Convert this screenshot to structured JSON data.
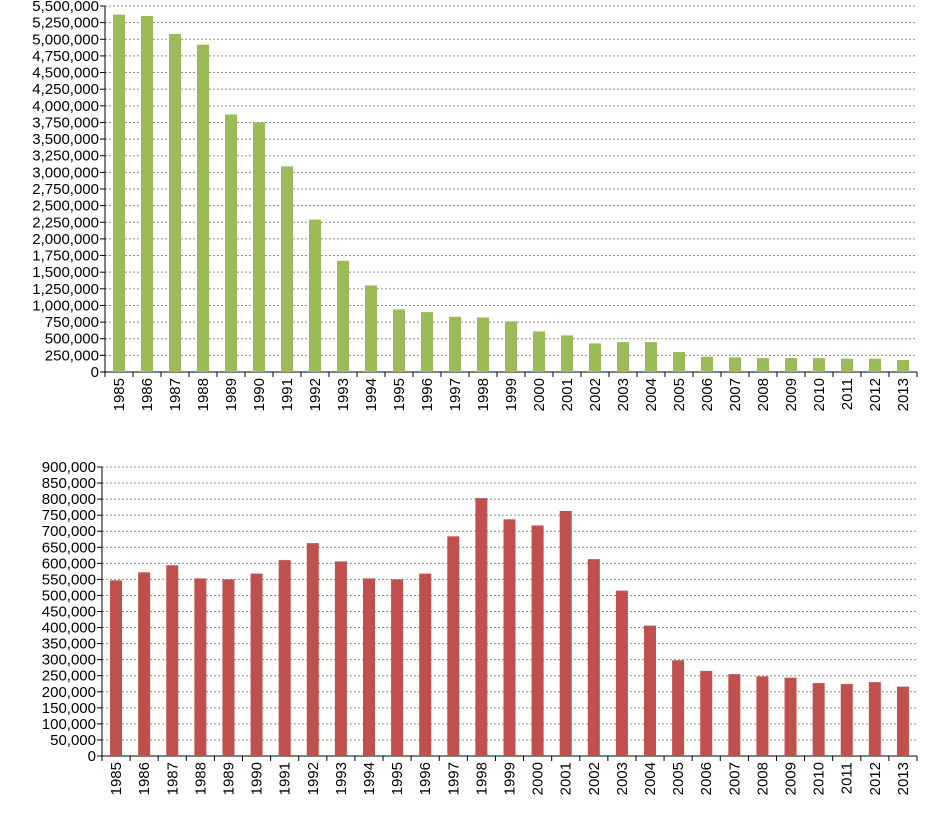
{
  "chart_data": [
    {
      "type": "bar",
      "title": "",
      "xlabel": "",
      "ylabel": "",
      "color": "#9bbb59",
      "ylim": [
        0,
        5500000
      ],
      "ytick_step": 250000,
      "grid": true,
      "categories": [
        "1985",
        "1986",
        "1987",
        "1988",
        "1989",
        "1990",
        "1991",
        "1992",
        "1993",
        "1994",
        "1995",
        "1996",
        "1997",
        "1998",
        "1999",
        "2000",
        "2001",
        "2002",
        "2003",
        "2004",
        "2005",
        "2006",
        "2007",
        "2008",
        "2009",
        "2010",
        "2011",
        "2012",
        "2013"
      ],
      "values": [
        5370000,
        5350000,
        5080000,
        4920000,
        3870000,
        3750000,
        3090000,
        2290000,
        1670000,
        1300000,
        940000,
        900000,
        830000,
        820000,
        760000,
        610000,
        550000,
        430000,
        450000,
        450000,
        300000,
        230000,
        220000,
        210000,
        210000,
        210000,
        200000,
        200000,
        180000
      ],
      "ytick_labels": [
        "0",
        "250,000",
        "500,000",
        "750,000",
        "1,000,000",
        "1,250,000",
        "1,500,000",
        "1,750,000",
        "2,000,000",
        "2,250,000",
        "2,500,000",
        "2,750,000",
        "3,000,000",
        "3,250,000",
        "3,500,000",
        "3,750,000",
        "4,000,000",
        "4,250,000",
        "4,500,000",
        "4,750,000",
        "5,000,000",
        "5,250,000",
        "5,500,000"
      ]
    },
    {
      "type": "bar",
      "title": "",
      "xlabel": "",
      "ylabel": "",
      "color": "#c0504d",
      "ylim": [
        0,
        900000
      ],
      "ytick_step": 50000,
      "grid": true,
      "categories": [
        "1985",
        "1986",
        "1987",
        "1988",
        "1989",
        "1990",
        "1991",
        "1992",
        "1993",
        "1994",
        "1995",
        "1996",
        "1997",
        "1998",
        "1999",
        "2000",
        "2001",
        "2002",
        "2003",
        "2004",
        "2005",
        "2006",
        "2007",
        "2008",
        "2009",
        "2010",
        "2011",
        "2012",
        "2013"
      ],
      "values": [
        547000,
        572000,
        594000,
        553000,
        550000,
        568000,
        610000,
        663000,
        606000,
        553000,
        550000,
        568000,
        684000,
        803000,
        737000,
        718000,
        763000,
        613000,
        515000,
        406000,
        298000,
        265000,
        255000,
        248000,
        244000,
        227000,
        224000,
        230000,
        216000
      ],
      "ytick_labels": [
        "0",
        "50,000",
        "100,000",
        "150,000",
        "200,000",
        "250,000",
        "300,000",
        "350,000",
        "400,000",
        "450,000",
        "500,000",
        "550,000",
        "600,000",
        "650,000",
        "700,000",
        "750,000",
        "800,000",
        "850,000",
        "900,000"
      ]
    }
  ]
}
